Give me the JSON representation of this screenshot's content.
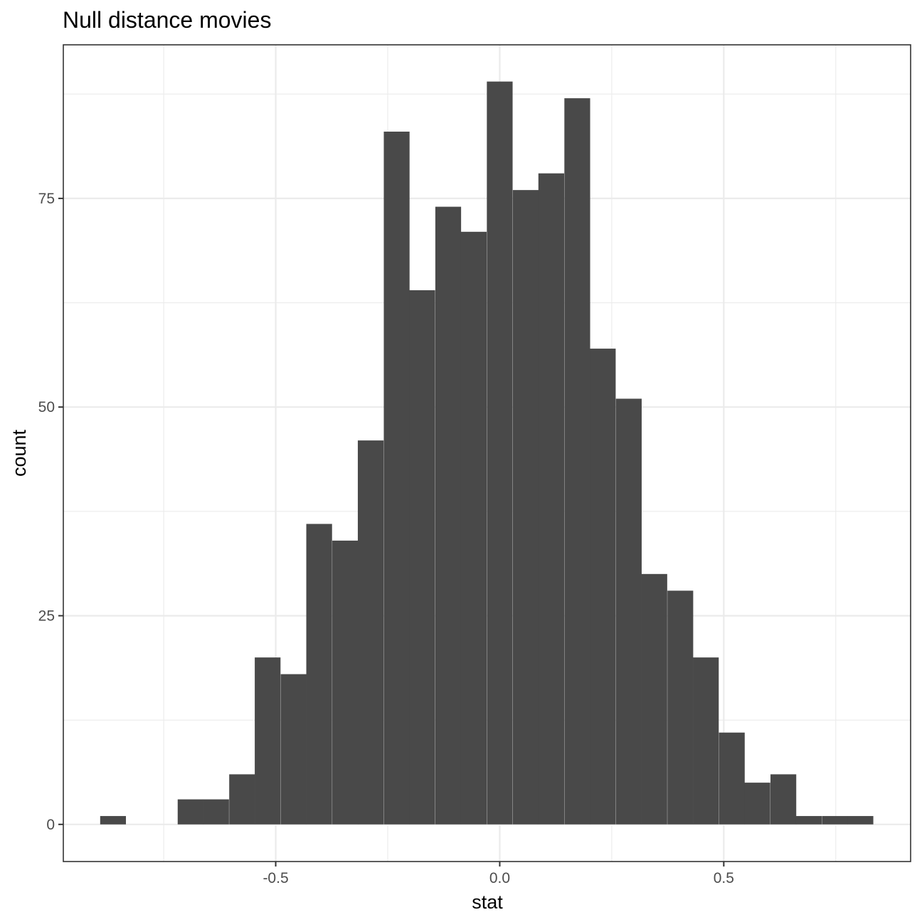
{
  "chart_data": {
    "type": "bar",
    "title": "Null distance movies",
    "xlabel": "stat",
    "ylabel": "count",
    "bin_width": 0.0575,
    "bins": [
      {
        "x": -0.863,
        "count": 1
      },
      {
        "x": -0.805,
        "count": 0
      },
      {
        "x": -0.748,
        "count": 0
      },
      {
        "x": -0.69,
        "count": 3
      },
      {
        "x": -0.633,
        "count": 3
      },
      {
        "x": -0.575,
        "count": 6
      },
      {
        "x": -0.518,
        "count": 20
      },
      {
        "x": -0.46,
        "count": 18
      },
      {
        "x": -0.403,
        "count": 36
      },
      {
        "x": -0.345,
        "count": 34
      },
      {
        "x": -0.288,
        "count": 46
      },
      {
        "x": -0.23,
        "count": 83
      },
      {
        "x": -0.173,
        "count": 64
      },
      {
        "x": -0.115,
        "count": 74
      },
      {
        "x": -0.058,
        "count": 71
      },
      {
        "x": 0.0,
        "count": 89
      },
      {
        "x": 0.058,
        "count": 76
      },
      {
        "x": 0.115,
        "count": 78
      },
      {
        "x": 0.173,
        "count": 87
      },
      {
        "x": 0.23,
        "count": 57
      },
      {
        "x": 0.288,
        "count": 51
      },
      {
        "x": 0.345,
        "count": 30
      },
      {
        "x": 0.403,
        "count": 28
      },
      {
        "x": 0.46,
        "count": 20
      },
      {
        "x": 0.518,
        "count": 11
      },
      {
        "x": 0.575,
        "count": 5
      },
      {
        "x": 0.633,
        "count": 6
      },
      {
        "x": 0.69,
        "count": 1
      },
      {
        "x": 0.748,
        "count": 1
      },
      {
        "x": 0.805,
        "count": 1
      }
    ],
    "xlim": [
      -0.974,
      0.917
    ],
    "ylim": [
      -4.45,
      93.4
    ],
    "x_ticks": [
      {
        "value": -0.5,
        "label": "-0.5"
      },
      {
        "value": 0.0,
        "label": "0.0"
      },
      {
        "value": 0.5,
        "label": "0.5"
      }
    ],
    "x_minor": [
      -0.75,
      -0.25,
      0.25,
      0.75
    ],
    "y_ticks": [
      {
        "value": 0,
        "label": "0"
      },
      {
        "value": 25,
        "label": "25"
      },
      {
        "value": 50,
        "label": "50"
      },
      {
        "value": 75,
        "label": "75"
      }
    ],
    "y_minor": [
      12.5,
      37.5,
      62.5,
      87.5
    ],
    "grid": true,
    "colors": {
      "bar": "#494949",
      "grid": "#ebebeb",
      "border": "#333333",
      "tick_label": "#4d4d4d"
    }
  }
}
